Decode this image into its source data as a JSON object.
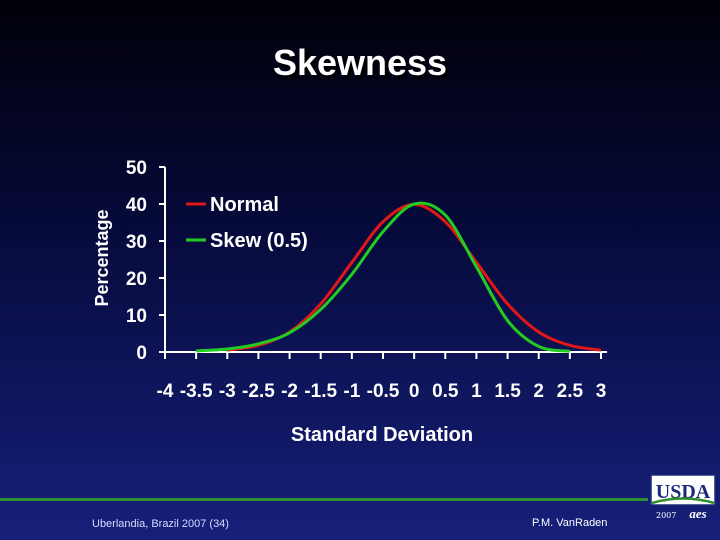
{
  "slide": {
    "title": "Skewness",
    "footer_left": "Uberlandia, Brazil 2007 (34)",
    "footer_right": "P.M. VanRaden",
    "logo_text": "USDA",
    "logo_year": "2007",
    "logo_mark": "aes"
  },
  "colors": {
    "axis": "#ffffff",
    "normal": "#e01818",
    "skew": "#22cc22",
    "footer_line": "#2f8f2f"
  },
  "chart_data": {
    "type": "line",
    "title": "",
    "xlabel": "Standard Deviation",
    "ylabel": "Percentage",
    "xlim": [
      -4,
      3
    ],
    "ylim": [
      0,
      50
    ],
    "x_ticks": [
      "-4",
      "-3.5",
      "-3",
      "-2.5",
      "-2",
      "-1.5",
      "-1",
      "-0.5",
      "0",
      "0.5",
      "1",
      "1.5",
      "2",
      "2.5",
      "3"
    ],
    "y_ticks": [
      "0",
      "10",
      "20",
      "30",
      "40",
      "50"
    ],
    "legend_position": "top-left",
    "series": [
      {
        "name": "Normal",
        "color": "#e01818",
        "x": [
          -3,
          -2.5,
          -2,
          -1.5,
          -1,
          -0.5,
          0,
          0.5,
          1,
          1.5,
          2,
          2.5,
          3
        ],
        "y": [
          0.5,
          1.8,
          5.4,
          13.0,
          24.2,
          35.2,
          39.9,
          35.2,
          24.2,
          13.0,
          5.4,
          1.8,
          0.5
        ]
      },
      {
        "name": "Skew (0.5)",
        "color": "#22cc22",
        "x": [
          -3.5,
          -3,
          -2.5,
          -2,
          -1.5,
          -1,
          -0.5,
          0,
          0.5,
          1,
          1.5,
          2,
          2.5
        ],
        "y": [
          0.3,
          0.8,
          2.2,
          5.2,
          11.5,
          21.0,
          32.5,
          40.0,
          37.0,
          23.0,
          8.5,
          1.5,
          0.2
        ]
      }
    ]
  }
}
